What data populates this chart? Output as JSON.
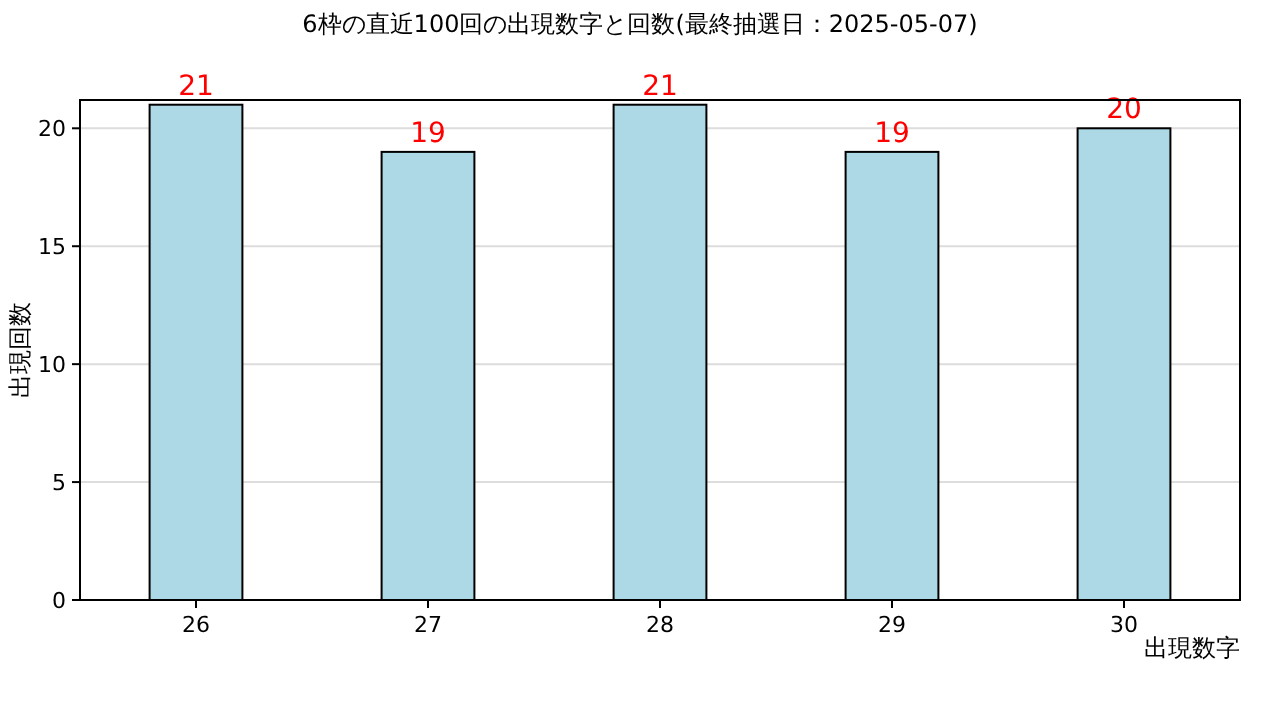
{
  "chart_data": {
    "type": "bar",
    "title": "6枠の直近100回の出現数字と回数(最終抽選日：2025-05-07)",
    "xlabel": "出現数字",
    "ylabel": "出現回数",
    "categories": [
      "26",
      "27",
      "28",
      "29",
      "30"
    ],
    "values": [
      21,
      19,
      21,
      19,
      20
    ],
    "color": "#add8e6",
    "data_labels": true,
    "ylim": [
      0,
      21.2
    ],
    "yticks": [
      0,
      5,
      10,
      15,
      20
    ],
    "grid": "y"
  }
}
